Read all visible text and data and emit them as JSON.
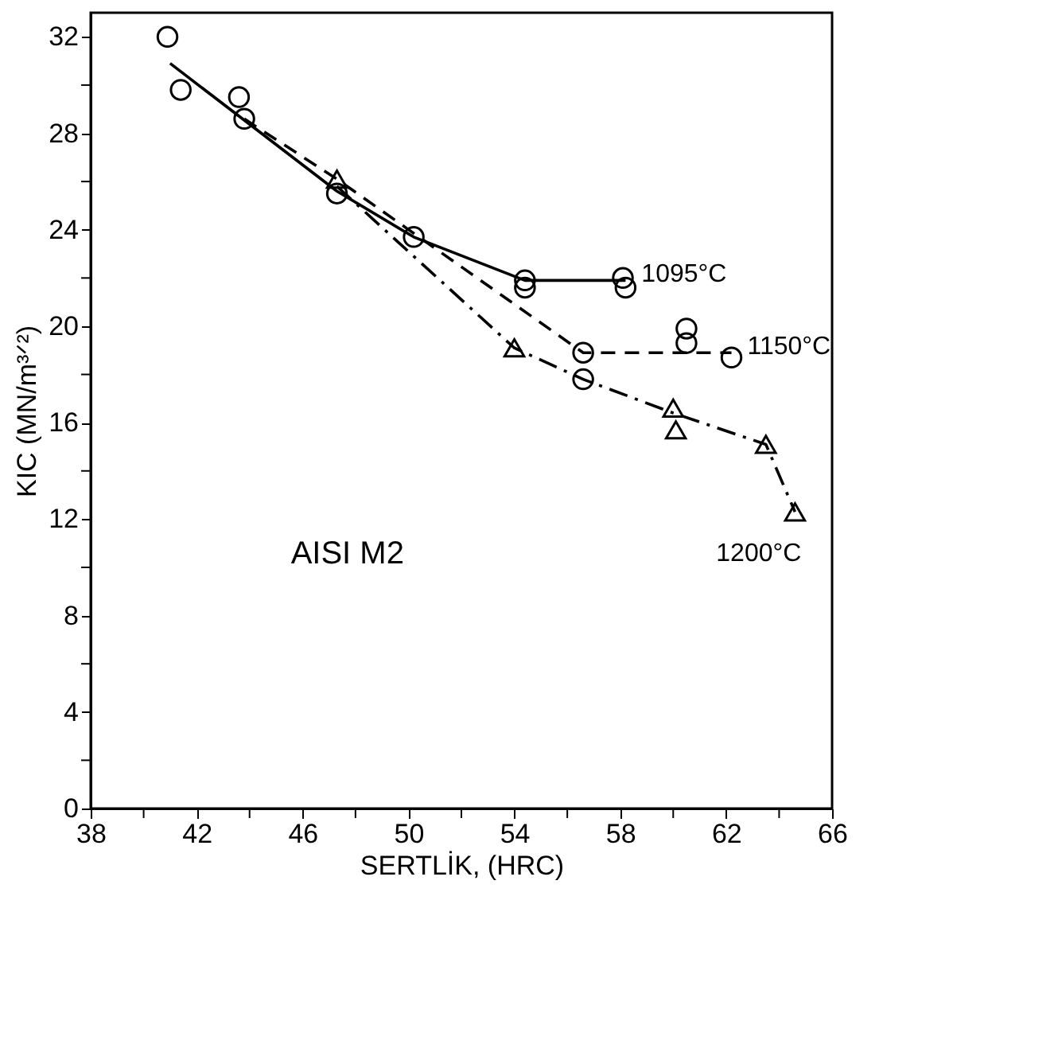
{
  "chart_data": {
    "type": "line",
    "xlabel": "SERTLİK, (HRC)",
    "ylabel": "KIC (MN/m³ᐟ²)",
    "xlim": [
      38,
      66
    ],
    "xticks": [
      38,
      {
        "value": 40,
        "label": null
      },
      42,
      {
        "value": 44,
        "label": null
      },
      46,
      {
        "value": 48,
        "label": null
      },
      50,
      {
        "value": 52,
        "label": null
      },
      54,
      {
        "value": 56,
        "label": null
      },
      58,
      {
        "value": 60,
        "label": null
      },
      62,
      {
        "value": 64,
        "label": null
      },
      66
    ],
    "ylim": [
      0,
      33
    ],
    "yticks": [
      0,
      {
        "value": 2,
        "label": null
      },
      4,
      {
        "value": 6,
        "label": null
      },
      8,
      {
        "value": 10,
        "label": null
      },
      12,
      {
        "value": 14,
        "label": null
      },
      16,
      {
        "value": 18,
        "label": null
      },
      20,
      {
        "value": 22,
        "label": null
      },
      24,
      {
        "value": 26,
        "label": null
      },
      28,
      {
        "value": 30,
        "label": null
      },
      32
    ],
    "grid": false,
    "annotations": [
      "AISI M2"
    ],
    "series": [
      {
        "type": "scatter",
        "marker": "circle",
        "color": "#000000",
        "x": [
          40.9,
          41.4,
          47.3,
          54.4,
          54.4,
          58.1,
          58.2
        ],
        "values": [
          32.0,
          29.8,
          25.5,
          21.6,
          21.9,
          22.0,
          21.6
        ]
      },
      {
        "type": "scatter",
        "marker": "circle",
        "color": "#000000",
        "x": [
          43.6,
          43.8,
          50.2,
          56.6,
          56.6,
          60.5,
          60.5,
          62.2
        ],
        "values": [
          29.5,
          28.6,
          23.7,
          18.9,
          17.8,
          19.9,
          19.3,
          18.7
        ]
      },
      {
        "type": "scatter",
        "marker": "triangle",
        "color": "#000000",
        "x": [
          47.3,
          54.0,
          60.0,
          60.1,
          63.5,
          64.6
        ],
        "values": [
          26.1,
          19.1,
          16.6,
          15.7,
          15.1,
          12.3
        ]
      },
      {
        "name": "1095°C",
        "line_style": "solid",
        "color": "#000000",
        "x": [
          41.0,
          47.3,
          50.2,
          54.4,
          58.2
        ],
        "values": [
          30.9,
          25.6,
          23.7,
          21.9,
          21.9
        ]
      },
      {
        "name": "1150°C",
        "line_style": "dashed",
        "color": "#000000",
        "x": [
          43.8,
          47.3,
          56.6,
          62.2
        ],
        "values": [
          28.6,
          26.1,
          18.9,
          18.9
        ]
      },
      {
        "name": "1200°C",
        "line_style": "dashdot",
        "color": "#000000",
        "x": [
          47.3,
          54.0,
          56.6,
          60.0,
          63.5,
          64.6
        ],
        "values": [
          25.8,
          19.1,
          17.8,
          16.4,
          15.1,
          12.3
        ]
      }
    ]
  }
}
